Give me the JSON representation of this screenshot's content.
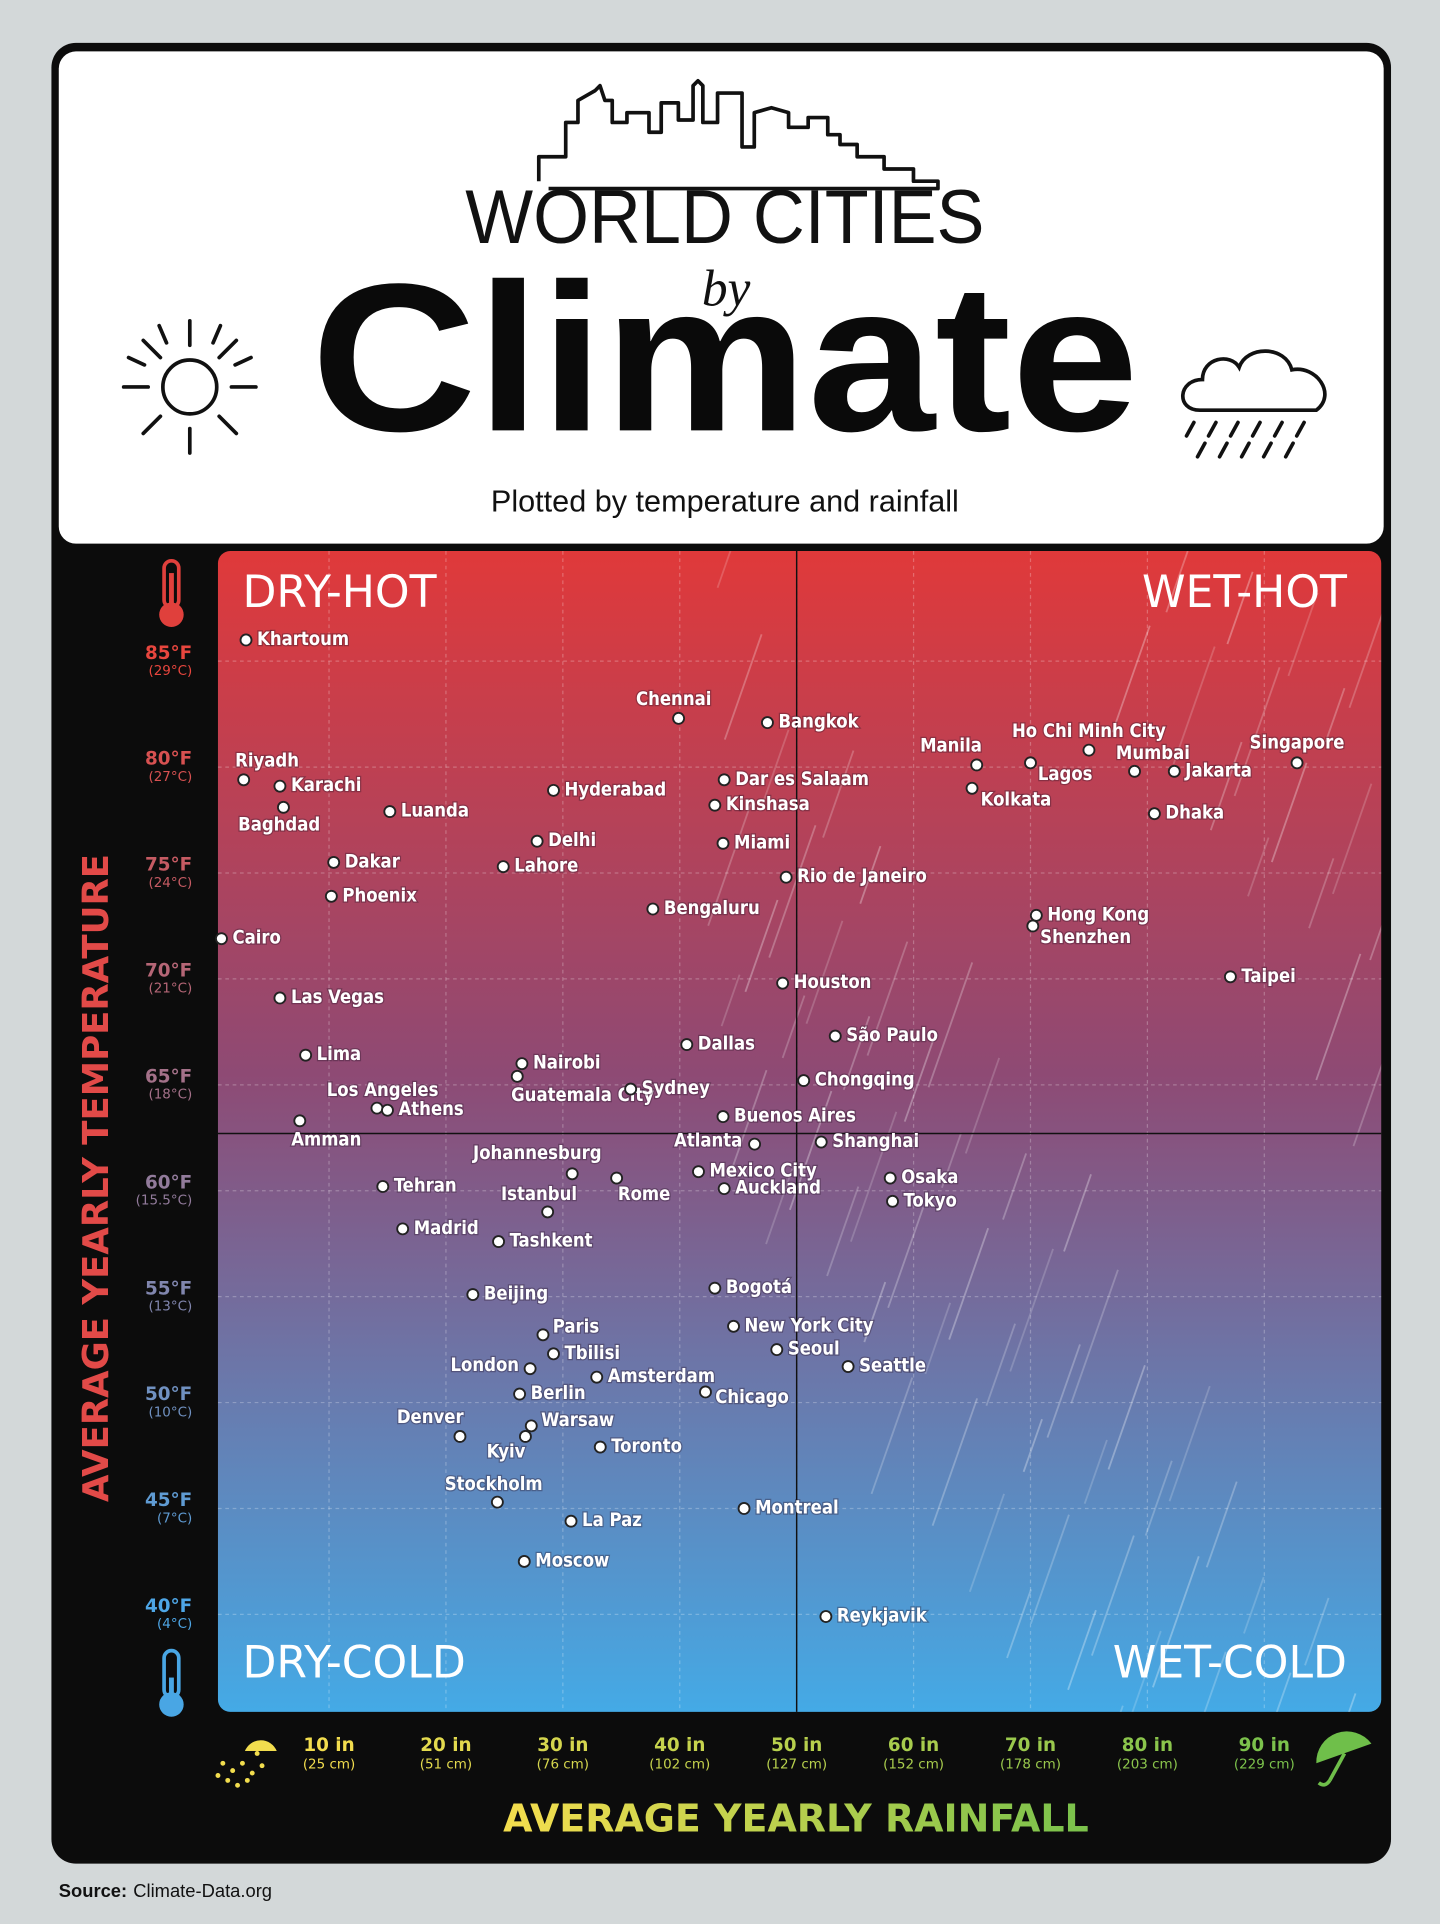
{
  "chart_data": {
    "type": "scatter",
    "title_line1": "WORLD CITIES",
    "title_by": "by",
    "title": "Climate",
    "subtitle": "Plotted by temperature and rainfall",
    "quadrant_labels": [
      "DRY-HOT",
      "WET-HOT",
      "DRY-COLD",
      "WET-COLD"
    ],
    "x_label": "AVERAGE YEARLY RAINFALL",
    "y_label": "AVERAGE YEARLY TEMPERATURE",
    "xlim": [
      0.5,
      100
    ],
    "ylim": [
      35.4,
      90.2
    ],
    "xticks": [
      {
        "value": 10,
        "label": "10 in"
      },
      {
        "value": 20,
        "label": "20 in"
      },
      {
        "value": 30,
        "label": "30 in"
      },
      {
        "value": 40,
        "label": "40 in"
      },
      {
        "value": 50,
        "label": "50 in"
      },
      {
        "value": 60,
        "label": "60 in"
      },
      {
        "value": 70,
        "label": "70 in"
      },
      {
        "value": 80,
        "label": "80 in"
      },
      {
        "value": 90,
        "label": "90 in"
      }
    ],
    "xtick_metric_labels": [
      "(25 cm)",
      "(51 cm)",
      "(76 cm)",
      "(102 cm)",
      "(127 cm)",
      "(152 cm)",
      "(178 cm)",
      "(203 cm)",
      "(229 cm)"
    ],
    "yticks": [
      {
        "value": 85,
        "label": "85°F"
      },
      {
        "value": 80,
        "label": "80°F"
      },
      {
        "value": 75,
        "label": "75°F"
      },
      {
        "value": 70,
        "label": "70°F"
      },
      {
        "value": 65,
        "label": "65°F"
      },
      {
        "value": 60,
        "label": "60°F"
      },
      {
        "value": 55,
        "label": "55°F"
      },
      {
        "value": 50,
        "label": "50°F"
      },
      {
        "value": 45,
        "label": "45°F"
      },
      {
        "value": 40,
        "label": "40°F"
      }
    ],
    "ytick_metric_labels": [
      "(29°C)",
      "(27°C)",
      "(24°C)",
      "(21°C)",
      "(18°C)",
      "(15.5°C)",
      "(13°C)",
      "(10°C)",
      "(7°C)",
      "(4°C)"
    ],
    "grid": true,
    "quadrant_divider": {
      "x": 50,
      "y": 62.7
    },
    "point_color": "#ffffff",
    "points": [
      {
        "label": "Khartoum",
        "x": 2.9,
        "y": 86.0
      },
      {
        "label": "Chennai",
        "x": 39.9,
        "y": 82.3
      },
      {
        "label": "Bangkok",
        "x": 47.5,
        "y": 82.1
      },
      {
        "label": "Manila",
        "x": 65.4,
        "y": 80.1
      },
      {
        "label": "Ho Chi Minh City",
        "x": 75.0,
        "y": 80.8
      },
      {
        "label": "Lagos",
        "x": 70.0,
        "y": 80.2
      },
      {
        "label": "Mumbai",
        "x": 78.9,
        "y": 79.8
      },
      {
        "label": "Jakarta",
        "x": 82.3,
        "y": 79.8
      },
      {
        "label": "Singapore",
        "x": 92.8,
        "y": 80.2
      },
      {
        "label": "Riyadh",
        "x": 2.7,
        "y": 79.4
      },
      {
        "label": "Karachi",
        "x": 5.8,
        "y": 79.1
      },
      {
        "label": "Baghdad",
        "x": 6.1,
        "y": 78.1
      },
      {
        "label": "Luanda",
        "x": 15.2,
        "y": 77.9
      },
      {
        "label": "Hyderabad",
        "x": 29.2,
        "y": 78.9
      },
      {
        "label": "Dar es Salaam",
        "x": 43.8,
        "y": 79.4
      },
      {
        "label": "Kinshasa",
        "x": 43.0,
        "y": 78.2
      },
      {
        "label": "Kolkata",
        "x": 65.0,
        "y": 79.0
      },
      {
        "label": "Dhaka",
        "x": 80.6,
        "y": 77.8
      },
      {
        "label": "Delhi",
        "x": 27.8,
        "y": 76.5
      },
      {
        "label": "Miami",
        "x": 43.7,
        "y": 76.4
      },
      {
        "label": "Dakar",
        "x": 10.4,
        "y": 75.5
      },
      {
        "label": "Lahore",
        "x": 24.9,
        "y": 75.3
      },
      {
        "label": "Rio de Janeiro",
        "x": 49.1,
        "y": 74.8
      },
      {
        "label": "Phoenix",
        "x": 10.2,
        "y": 73.9
      },
      {
        "label": "Bengaluru",
        "x": 37.7,
        "y": 73.3
      },
      {
        "label": "Hong Kong",
        "x": 70.5,
        "y": 73.0
      },
      {
        "label": "Shenzhen",
        "x": 70.2,
        "y": 72.5
      },
      {
        "label": "Cairo",
        "x": 0.8,
        "y": 71.9
      },
      {
        "label": "Houston",
        "x": 48.8,
        "y": 69.8
      },
      {
        "label": "Taipei",
        "x": 87.1,
        "y": 70.1
      },
      {
        "label": "Las Vegas",
        "x": 5.8,
        "y": 69.1
      },
      {
        "label": "São Paulo",
        "x": 53.3,
        "y": 67.3
      },
      {
        "label": "Dallas",
        "x": 40.6,
        "y": 66.9
      },
      {
        "label": "Lima",
        "x": 8.0,
        "y": 66.4
      },
      {
        "label": "Nairobi",
        "x": 26.5,
        "y": 66.0
      },
      {
        "label": "Guatemala City",
        "x": 26.1,
        "y": 65.4
      },
      {
        "label": "Sydney",
        "x": 35.8,
        "y": 64.8
      },
      {
        "label": "Chongqing",
        "x": 50.6,
        "y": 65.2
      },
      {
        "label": "Los Angeles",
        "x": 14.1,
        "y": 63.9
      },
      {
        "label": "Athens",
        "x": 15.0,
        "y": 63.8
      },
      {
        "label": "Buenos Aires",
        "x": 43.7,
        "y": 63.5
      },
      {
        "label": "Amman",
        "x": 7.5,
        "y": 63.3
      },
      {
        "label": "Atlanta",
        "x": 46.4,
        "y": 62.2
      },
      {
        "label": "Shanghai",
        "x": 52.1,
        "y": 62.3
      },
      {
        "label": "Johannesburg",
        "x": 30.8,
        "y": 60.8
      },
      {
        "label": "Rome",
        "x": 34.6,
        "y": 60.6
      },
      {
        "label": "Mexico City",
        "x": 41.6,
        "y": 60.9
      },
      {
        "label": "Osaka",
        "x": 58.0,
        "y": 60.6
      },
      {
        "label": "Tehran",
        "x": 14.6,
        "y": 60.2
      },
      {
        "label": "Auckland",
        "x": 43.8,
        "y": 60.1
      },
      {
        "label": "Tokyo",
        "x": 58.2,
        "y": 59.5
      },
      {
        "label": "Istanbul",
        "x": 28.7,
        "y": 59.0
      },
      {
        "label": "Madrid",
        "x": 16.3,
        "y": 58.2
      },
      {
        "label": "Tashkent",
        "x": 24.5,
        "y": 57.6
      },
      {
        "label": "Bogotá",
        "x": 43.0,
        "y": 55.4
      },
      {
        "label": "Beijing",
        "x": 22.3,
        "y": 55.1
      },
      {
        "label": "New York City",
        "x": 44.6,
        "y": 53.6
      },
      {
        "label": "Paris",
        "x": 28.3,
        "y": 53.2
      },
      {
        "label": "Seoul",
        "x": 48.3,
        "y": 52.5
      },
      {
        "label": "Tbilisi",
        "x": 29.2,
        "y": 52.3
      },
      {
        "label": "Seattle",
        "x": 54.4,
        "y": 51.7
      },
      {
        "label": "London",
        "x": 27.2,
        "y": 51.6
      },
      {
        "label": "Amsterdam",
        "x": 32.9,
        "y": 51.2
      },
      {
        "label": "Chicago",
        "x": 42.2,
        "y": 50.5
      },
      {
        "label": "Berlin",
        "x": 26.3,
        "y": 50.4
      },
      {
        "label": "Warsaw",
        "x": 27.3,
        "y": 48.9
      },
      {
        "label": "Kyiv",
        "x": 26.8,
        "y": 48.4
      },
      {
        "label": "Denver",
        "x": 21.2,
        "y": 48.4
      },
      {
        "label": "Toronto",
        "x": 33.2,
        "y": 47.9
      },
      {
        "label": "Stockholm",
        "x": 24.4,
        "y": 45.3
      },
      {
        "label": "Montreal",
        "x": 45.5,
        "y": 45.0
      },
      {
        "label": "La Paz",
        "x": 30.7,
        "y": 44.4
      },
      {
        "label": "Moscow",
        "x": 26.7,
        "y": 42.5
      },
      {
        "label": "Reykjavik",
        "x": 52.5,
        "y": 39.9
      }
    ]
  },
  "footer": {
    "source_label": "Source:",
    "source": "Climate-Data.org"
  }
}
